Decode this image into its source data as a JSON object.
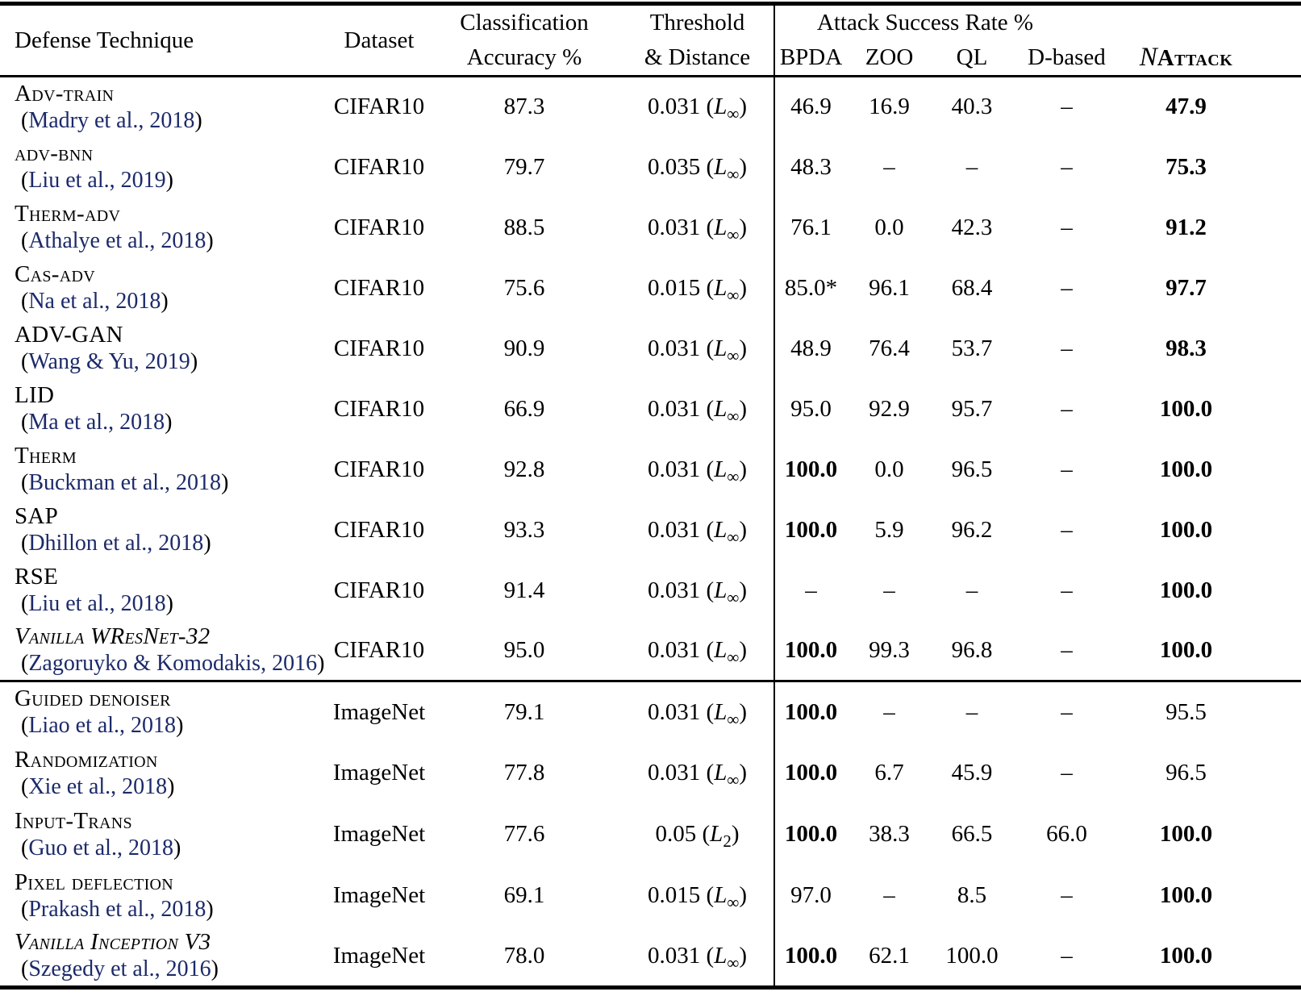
{
  "header": {
    "defense": "Defense Technique",
    "dataset": "Dataset",
    "accuracy_line1": "Classification",
    "accuracy_line2": "Accuracy %",
    "threshold_line1": "Threshold",
    "threshold_line2": "& Distance",
    "attack_group": "Attack Success Rate %",
    "attack_cols": [
      "BPDA",
      "ZOO",
      "QL",
      "D-based"
    ],
    "nattack_n": "N",
    "nattack_rest": "Attack"
  },
  "punct": {
    "open": "(",
    "close": ")"
  },
  "symbols": {
    "norm_letter": "L"
  },
  "rows": [
    {
      "name": "Adv-train",
      "name_style": "sc",
      "citation": "Madry et al., 2018",
      "dataset": "CIFAR10",
      "accuracy": "87.3",
      "threshold": {
        "value": "0.031",
        "sub": "∞"
      },
      "section": "cifar10",
      "attacks": [
        {
          "v": "46.9",
          "b": false
        },
        {
          "v": "16.9",
          "b": false
        },
        {
          "v": "40.3",
          "b": false
        },
        {
          "v": "–",
          "b": false
        },
        {
          "v": "47.9",
          "b": true
        }
      ]
    },
    {
      "name": "adv-bnn",
      "name_style": "sc",
      "citation": "Liu et al., 2019",
      "dataset": "CIFAR10",
      "accuracy": "79.7",
      "threshold": {
        "value": "0.035",
        "sub": "∞"
      },
      "section": "cifar10",
      "attacks": [
        {
          "v": "48.3",
          "b": false
        },
        {
          "v": "–",
          "b": false
        },
        {
          "v": "–",
          "b": false
        },
        {
          "v": "–",
          "b": false
        },
        {
          "v": "75.3",
          "b": true
        }
      ]
    },
    {
      "name": "Therm-adv",
      "name_style": "sc",
      "citation": "Athalye et al., 2018",
      "dataset": "CIFAR10",
      "accuracy": "88.5",
      "threshold": {
        "value": "0.031",
        "sub": "∞"
      },
      "section": "cifar10",
      "attacks": [
        {
          "v": "76.1",
          "b": false
        },
        {
          "v": "0.0",
          "b": false
        },
        {
          "v": "42.3",
          "b": false
        },
        {
          "v": "–",
          "b": false
        },
        {
          "v": "91.2",
          "b": true
        }
      ]
    },
    {
      "name": "Cas-adv",
      "name_style": "sc",
      "citation": "Na et al., 2018",
      "dataset": "CIFAR10",
      "accuracy": "75.6",
      "threshold": {
        "value": "0.015",
        "sub": "∞"
      },
      "section": "cifar10",
      "attacks": [
        {
          "v": "85.0*",
          "b": false
        },
        {
          "v": "96.1",
          "b": false
        },
        {
          "v": "68.4",
          "b": false
        },
        {
          "v": "–",
          "b": false
        },
        {
          "v": "97.7",
          "b": true
        }
      ]
    },
    {
      "name": "ADV-GAN",
      "name_style": "sc",
      "citation": "Wang & Yu, 2019",
      "dataset": "CIFAR10",
      "accuracy": "90.9",
      "threshold": {
        "value": "0.031",
        "sub": "∞"
      },
      "section": "cifar10",
      "attacks": [
        {
          "v": "48.9",
          "b": false
        },
        {
          "v": "76.4",
          "b": false
        },
        {
          "v": "53.7",
          "b": false
        },
        {
          "v": "–",
          "b": false
        },
        {
          "v": "98.3",
          "b": true
        }
      ]
    },
    {
      "name": "LID",
      "name_style": "sc",
      "citation": "Ma et al., 2018",
      "dataset": "CIFAR10",
      "accuracy": "66.9",
      "threshold": {
        "value": "0.031",
        "sub": "∞"
      },
      "section": "cifar10",
      "attacks": [
        {
          "v": "95.0",
          "b": false
        },
        {
          "v": "92.9",
          "b": false
        },
        {
          "v": "95.7",
          "b": false
        },
        {
          "v": "–",
          "b": false
        },
        {
          "v": "100.0",
          "b": true
        }
      ]
    },
    {
      "name": "Therm",
      "name_style": "sc",
      "citation": "Buckman et al., 2018",
      "dataset": "CIFAR10",
      "accuracy": "92.8",
      "threshold": {
        "value": "0.031",
        "sub": "∞"
      },
      "section": "cifar10",
      "attacks": [
        {
          "v": "100.0",
          "b": true
        },
        {
          "v": "0.0",
          "b": false
        },
        {
          "v": "96.5",
          "b": false
        },
        {
          "v": "–",
          "b": false
        },
        {
          "v": "100.0",
          "b": true
        }
      ]
    },
    {
      "name": "SAP",
      "name_style": "sc",
      "citation": "Dhillon et al., 2018",
      "dataset": "CIFAR10",
      "accuracy": "93.3",
      "threshold": {
        "value": "0.031",
        "sub": "∞"
      },
      "section": "cifar10",
      "attacks": [
        {
          "v": "100.0",
          "b": true
        },
        {
          "v": "5.9",
          "b": false
        },
        {
          "v": "96.2",
          "b": false
        },
        {
          "v": "–",
          "b": false
        },
        {
          "v": "100.0",
          "b": true
        }
      ]
    },
    {
      "name": "RSE",
      "name_style": "sc",
      "citation": "Liu et al., 2018",
      "dataset": "CIFAR10",
      "accuracy": "91.4",
      "threshold": {
        "value": "0.031",
        "sub": "∞"
      },
      "section": "cifar10",
      "attacks": [
        {
          "v": "–",
          "b": false
        },
        {
          "v": "–",
          "b": false
        },
        {
          "v": "–",
          "b": false
        },
        {
          "v": "–",
          "b": false
        },
        {
          "v": "100.0",
          "b": true
        }
      ]
    },
    {
      "name": "Vanilla WResNet-32",
      "name_style": "it",
      "citation": "Zagoruyko & Komodakis, 2016",
      "dataset": "CIFAR10",
      "accuracy": "95.0",
      "threshold": {
        "value": "0.031",
        "sub": "∞"
      },
      "section": "cifar10",
      "attacks": [
        {
          "v": "100.0",
          "b": true
        },
        {
          "v": "99.3",
          "b": false
        },
        {
          "v": "96.8",
          "b": false
        },
        {
          "v": "–",
          "b": false
        },
        {
          "v": "100.0",
          "b": true
        }
      ]
    },
    {
      "name": "Guided denoiser",
      "name_style": "sc",
      "citation": "Liao et al., 2018",
      "dataset": "ImageNet",
      "accuracy": "79.1",
      "threshold": {
        "value": "0.031",
        "sub": "∞"
      },
      "section": "imagenet",
      "attacks": [
        {
          "v": "100.0",
          "b": true
        },
        {
          "v": "–",
          "b": false
        },
        {
          "v": "–",
          "b": false
        },
        {
          "v": "–",
          "b": false
        },
        {
          "v": "95.5",
          "b": false
        }
      ]
    },
    {
      "name": "Randomization",
      "name_style": "sc",
      "citation": "Xie et al., 2018",
      "dataset": "ImageNet",
      "accuracy": "77.8",
      "threshold": {
        "value": "0.031",
        "sub": "∞"
      },
      "section": "imagenet",
      "attacks": [
        {
          "v": "100.0",
          "b": true
        },
        {
          "v": "6.7",
          "b": false
        },
        {
          "v": "45.9",
          "b": false
        },
        {
          "v": "–",
          "b": false
        },
        {
          "v": "96.5",
          "b": false
        }
      ]
    },
    {
      "name": "Input-Trans",
      "name_style": "sc",
      "citation": "Guo et al., 2018",
      "dataset": "ImageNet",
      "accuracy": "77.6",
      "threshold": {
        "value": "0.05",
        "sub": "2"
      },
      "section": "imagenet",
      "attacks": [
        {
          "v": "100.0",
          "b": true
        },
        {
          "v": "38.3",
          "b": false
        },
        {
          "v": "66.5",
          "b": false
        },
        {
          "v": "66.0",
          "b": false
        },
        {
          "v": "100.0",
          "b": true
        }
      ]
    },
    {
      "name": "Pixel deflection",
      "name_style": "sc",
      "citation": "Prakash et al., 2018",
      "dataset": "ImageNet",
      "accuracy": "69.1",
      "threshold": {
        "value": "0.015",
        "sub": "∞"
      },
      "section": "imagenet",
      "attacks": [
        {
          "v": "97.0",
          "b": false
        },
        {
          "v": "–",
          "b": false
        },
        {
          "v": "8.5",
          "b": false
        },
        {
          "v": "–",
          "b": false
        },
        {
          "v": "100.0",
          "b": true
        }
      ]
    },
    {
      "name": "Vanilla Inception V3",
      "name_style": "it",
      "citation": "Szegedy et al., 2016",
      "dataset": "ImageNet",
      "accuracy": "78.0",
      "threshold": {
        "value": "0.031",
        "sub": "∞"
      },
      "section": "imagenet",
      "attacks": [
        {
          "v": "100.0",
          "b": true
        },
        {
          "v": "62.1",
          "b": false
        },
        {
          "v": "100.0",
          "b": false
        },
        {
          "v": "–",
          "b": false
        },
        {
          "v": "100.0",
          "b": true
        }
      ]
    }
  ]
}
